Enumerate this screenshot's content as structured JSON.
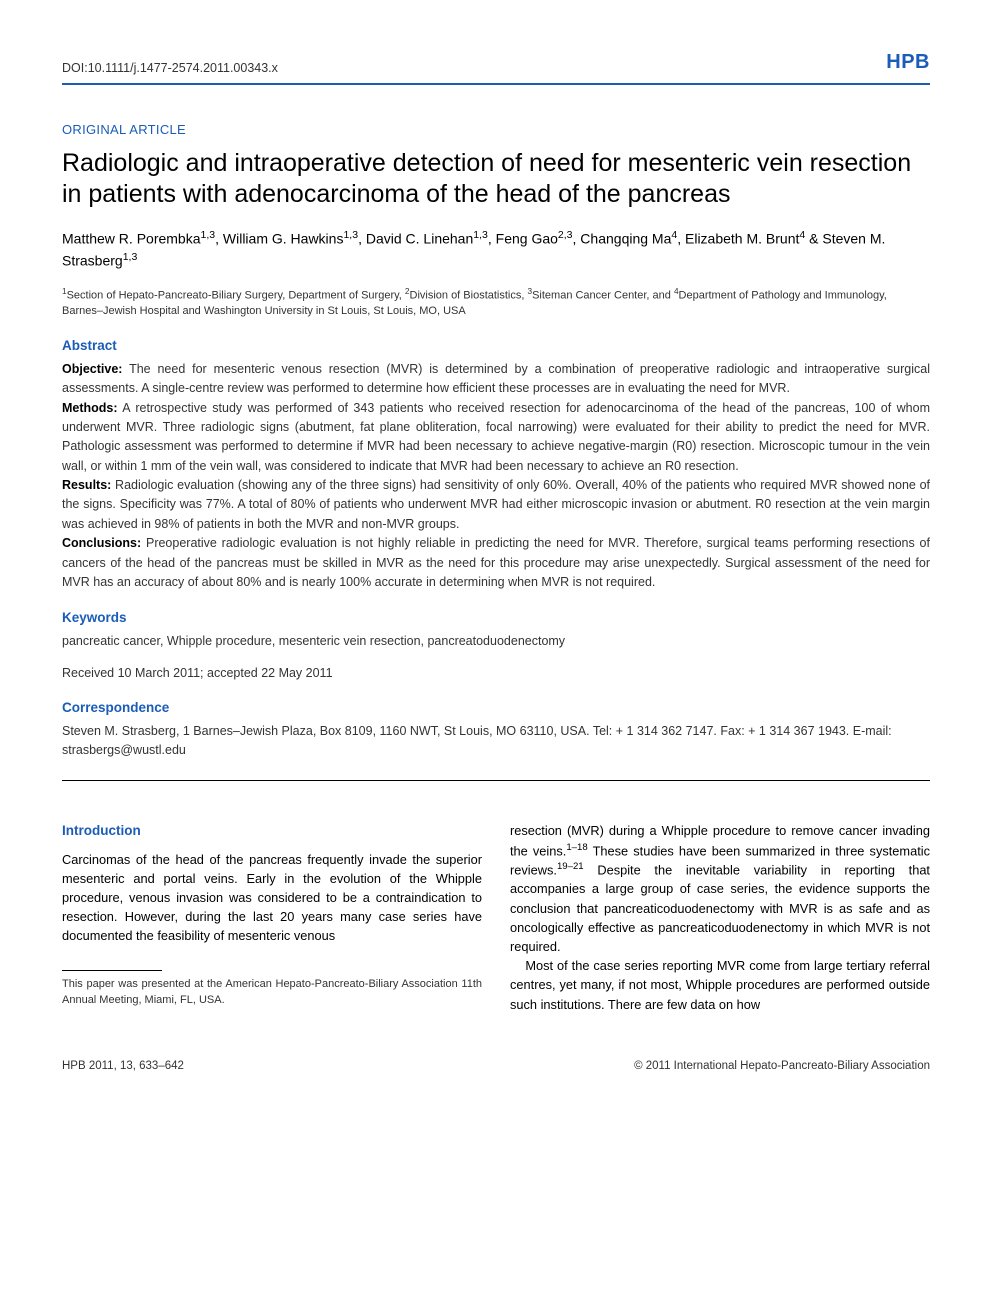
{
  "header": {
    "doi": "DOI:10.1111/j.1477-2574.2011.00343.x",
    "journal": "HPB"
  },
  "article_type": "ORIGINAL ARTICLE",
  "title": "Radiologic and intraoperative detection of need for mesenteric vein resection in patients with adenocarcinoma of the head of the pancreas",
  "authors_html": "Matthew R. Porembka<sup>1,3</sup>, William G. Hawkins<sup>1,3</sup>, David C. Linehan<sup>1,3</sup>, Feng Gao<sup>2,3</sup>, Changqing Ma<sup>4</sup>, Elizabeth M. Brunt<sup>4</sup> & Steven M. Strasberg<sup>1,3</sup>",
  "affiliations_html": "<sup>1</sup>Section of Hepato-Pancreato-Biliary Surgery, Department of Surgery, <sup>2</sup>Division of Biostatistics, <sup>3</sup>Siteman Cancer Center, and <sup>4</sup>Department of Pathology and Immunology, Barnes–Jewish Hospital and Washington University in St Louis, St Louis, MO, USA",
  "abstract": {
    "heading": "Abstract",
    "objective_label": "Objective:",
    "objective": " The need for mesenteric venous resection (MVR) is determined by a combination of preoperative radiologic and intraoperative surgical assessments. A single-centre review was performed to determine how efficient these processes are in evaluating the need for MVR.",
    "methods_label": "Methods:",
    "methods": " A retrospective study was performed of 343 patients who received resection for adenocarcinoma of the head of the pancreas, 100 of whom underwent MVR. Three radiologic signs (abutment, fat plane obliteration, focal narrowing) were evaluated for their ability to predict the need for MVR. Pathologic assessment was performed to determine if MVR had been necessary to achieve negative-margin (R0) resection. Microscopic tumour in the vein wall, or within 1 mm of the vein wall, was considered to indicate that MVR had been necessary to achieve an R0 resection.",
    "results_label": "Results:",
    "results": " Radiologic evaluation (showing any of the three signs) had sensitivity of only 60%. Overall, 40% of the patients who required MVR showed none of the signs. Specificity was 77%. A total of 80% of patients who underwent MVR had either microscopic invasion or abutment. R0 resection at the vein margin was achieved in 98% of patients in both the MVR and non-MVR groups.",
    "conclusions_label": "Conclusions:",
    "conclusions": " Preoperative radiologic evaluation is not highly reliable in predicting the need for MVR. Therefore, surgical teams performing resections of cancers of the head of the pancreas must be skilled in MVR as the need for this procedure may arise unexpectedly. Surgical assessment of the need for MVR has an accuracy of about 80% and is nearly 100% accurate in determining when MVR is not required."
  },
  "keywords": {
    "heading": "Keywords",
    "text": "pancreatic cancer, Whipple procedure, mesenteric vein resection, pancreatoduodenectomy"
  },
  "received": "Received 10 March 2011; accepted 22 May 2011",
  "correspondence": {
    "heading": "Correspondence",
    "text": "Steven M. Strasberg, 1 Barnes–Jewish Plaza, Box 8109, 1160 NWT, St Louis, MO 63110, USA. Tel: + 1 314 362 7147. Fax: + 1 314 367 1943. E-mail: strasbergs@wustl.edu"
  },
  "body": {
    "intro_heading": "Introduction",
    "col1_p1": "Carcinomas of the head of the pancreas frequently invade the superior mesenteric and portal veins. Early in the evolution of the Whipple procedure, venous invasion was considered to be a contraindication to resection. However, during the last 20 years many case series have documented the feasibility of mesenteric venous",
    "col1_footnote": "This paper was presented at the American Hepato-Pancreato-Biliary Association 11th Annual Meeting, Miami, FL, USA.",
    "col2_p1_html": "resection (MVR) during a Whipple procedure to remove cancer invading the veins.<sup>1–18</sup> These studies have been summarized in three systematic reviews.<sup>19–21</sup> Despite the inevitable variability in reporting that accompanies a large group of case series, the evidence supports the conclusion that pancreaticoduodenectomy with MVR is as safe and as oncologically effective as pancreaticoduodenectomy in which MVR is not required.",
    "col2_p2": "Most of the case series reporting MVR come from large tertiary referral centres, yet many, if not most, Whipple procedures are performed outside such institutions. There are few data on how"
  },
  "footer": {
    "left": "HPB 2011, 13, 633–642",
    "right": "© 2011 International Hepato-Pancreato-Biliary Association"
  },
  "colors": {
    "accent": "#1a5cb8",
    "text": "#000000",
    "muted": "#333333",
    "background": "#ffffff"
  },
  "typography": {
    "title_fontsize_pt": 19,
    "body_fontsize_pt": 10,
    "heading_fontsize_pt": 10.5,
    "font_family": "Arial"
  }
}
